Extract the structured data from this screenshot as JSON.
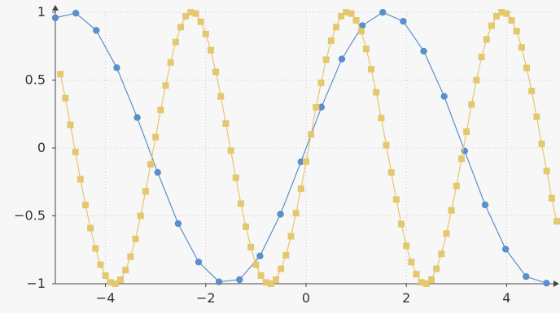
{
  "chart_data": {
    "type": "line",
    "title": "",
    "xlabel": "",
    "ylabel": "",
    "xlim": [
      -5,
      5
    ],
    "ylim": [
      -1,
      1
    ],
    "grid": true,
    "x_ticks": [
      -4,
      -2,
      0,
      2,
      4
    ],
    "x_tick_labels": [
      "−4",
      "−2",
      "0",
      "2",
      "4"
    ],
    "y_ticks": [
      -1,
      -0.5,
      0,
      0.5,
      1
    ],
    "y_tick_labels": [
      "−1",
      "−0.5",
      "0",
      "0.5",
      "1"
    ],
    "series": [
      {
        "color": "#5b8fc9",
        "marker": "circle",
        "x": [
          -5,
          -4.5918,
          -4.1837,
          -3.7755,
          -3.3673,
          -2.9592,
          -2.551,
          -2.1429,
          -1.7347,
          -1.3265,
          -0.9184,
          -0.5102,
          -0.102,
          0.3061,
          0.7143,
          1.1224,
          1.5306,
          1.9388,
          2.3469,
          2.7551,
          3.1633,
          3.5714,
          3.9796,
          4.3878,
          4.7959
        ],
        "y": [
          0.959,
          0.993,
          0.866,
          0.591,
          0.224,
          -0.18,
          -0.557,
          -0.84,
          -0.986,
          -0.97,
          -0.795,
          -0.488,
          -0.102,
          0.301,
          0.655,
          0.901,
          0.999,
          0.933,
          0.713,
          0.38,
          -0.022,
          -0.419,
          -0.745,
          -0.947,
          -0.996
        ]
      },
      {
        "color": "#e4c76e",
        "marker": "square",
        "x": [
          -4.9,
          -4.8,
          -4.7,
          -4.6,
          -4.5,
          -4.4,
          -4.3,
          -4.2,
          -4.1,
          -4.0,
          -3.9,
          -3.8,
          -3.7,
          -3.6,
          -3.5,
          -3.4,
          -3.3,
          -3.2,
          -3.1,
          -3.0,
          -2.9,
          -2.8,
          -2.7,
          -2.6,
          -2.5,
          -2.4,
          -2.3,
          -2.2,
          -2.1,
          -2.0,
          -1.9,
          -1.8,
          -1.7,
          -1.6,
          -1.5,
          -1.4,
          -1.3,
          -1.2,
          -1.1,
          -1.0,
          -0.9,
          -0.8,
          -0.7,
          -0.6,
          -0.5,
          -0.4,
          -0.3,
          -0.2,
          -0.1,
          0.0,
          0.1,
          0.2,
          0.3,
          0.4,
          0.5,
          0.6,
          0.7,
          0.8,
          0.9,
          1.0,
          1.1,
          1.2,
          1.3,
          1.4,
          1.5,
          1.6,
          1.7,
          1.8,
          1.9,
          2.0,
          2.1,
          2.2,
          2.3,
          2.4,
          2.5,
          2.6,
          2.7,
          2.8,
          2.9,
          3.0,
          3.1,
          3.2,
          3.3,
          3.4,
          3.5,
          3.6,
          3.7,
          3.8,
          3.9,
          4.0,
          4.1,
          4.2,
          4.3,
          4.4,
          4.5,
          4.6,
          4.7,
          4.8,
          4.9,
          5.0
        ],
        "y": [
          0.544,
          0.367,
          0.17,
          -0.03,
          -0.23,
          -0.42,
          -0.59,
          -0.74,
          -0.86,
          -0.94,
          -0.99,
          -1.0,
          -0.97,
          -0.9,
          -0.8,
          -0.67,
          -0.5,
          -0.32,
          -0.12,
          0.08,
          0.28,
          0.46,
          0.63,
          0.78,
          0.89,
          0.97,
          1.0,
          0.99,
          0.93,
          0.84,
          0.72,
          0.56,
          0.38,
          0.18,
          -0.02,
          -0.22,
          -0.41,
          -0.58,
          -0.73,
          -0.86,
          -0.94,
          -0.99,
          -1.0,
          -0.97,
          -0.89,
          -0.79,
          -0.65,
          -0.48,
          -0.3,
          -0.1,
          0.1,
          0.3,
          0.48,
          0.65,
          0.79,
          0.89,
          0.97,
          1.0,
          0.99,
          0.94,
          0.86,
          0.73,
          0.58,
          0.41,
          0.22,
          0.02,
          -0.18,
          -0.38,
          -0.56,
          -0.72,
          -0.84,
          -0.93,
          -0.99,
          -1.0,
          -0.97,
          -0.89,
          -0.78,
          -0.63,
          -0.46,
          -0.28,
          -0.08,
          0.12,
          0.32,
          0.5,
          0.67,
          0.8,
          0.9,
          0.97,
          1.0,
          0.99,
          0.94,
          0.86,
          0.74,
          0.59,
          0.42,
          0.23,
          0.03,
          -0.17,
          -0.37,
          -0.54
        ]
      }
    ]
  }
}
